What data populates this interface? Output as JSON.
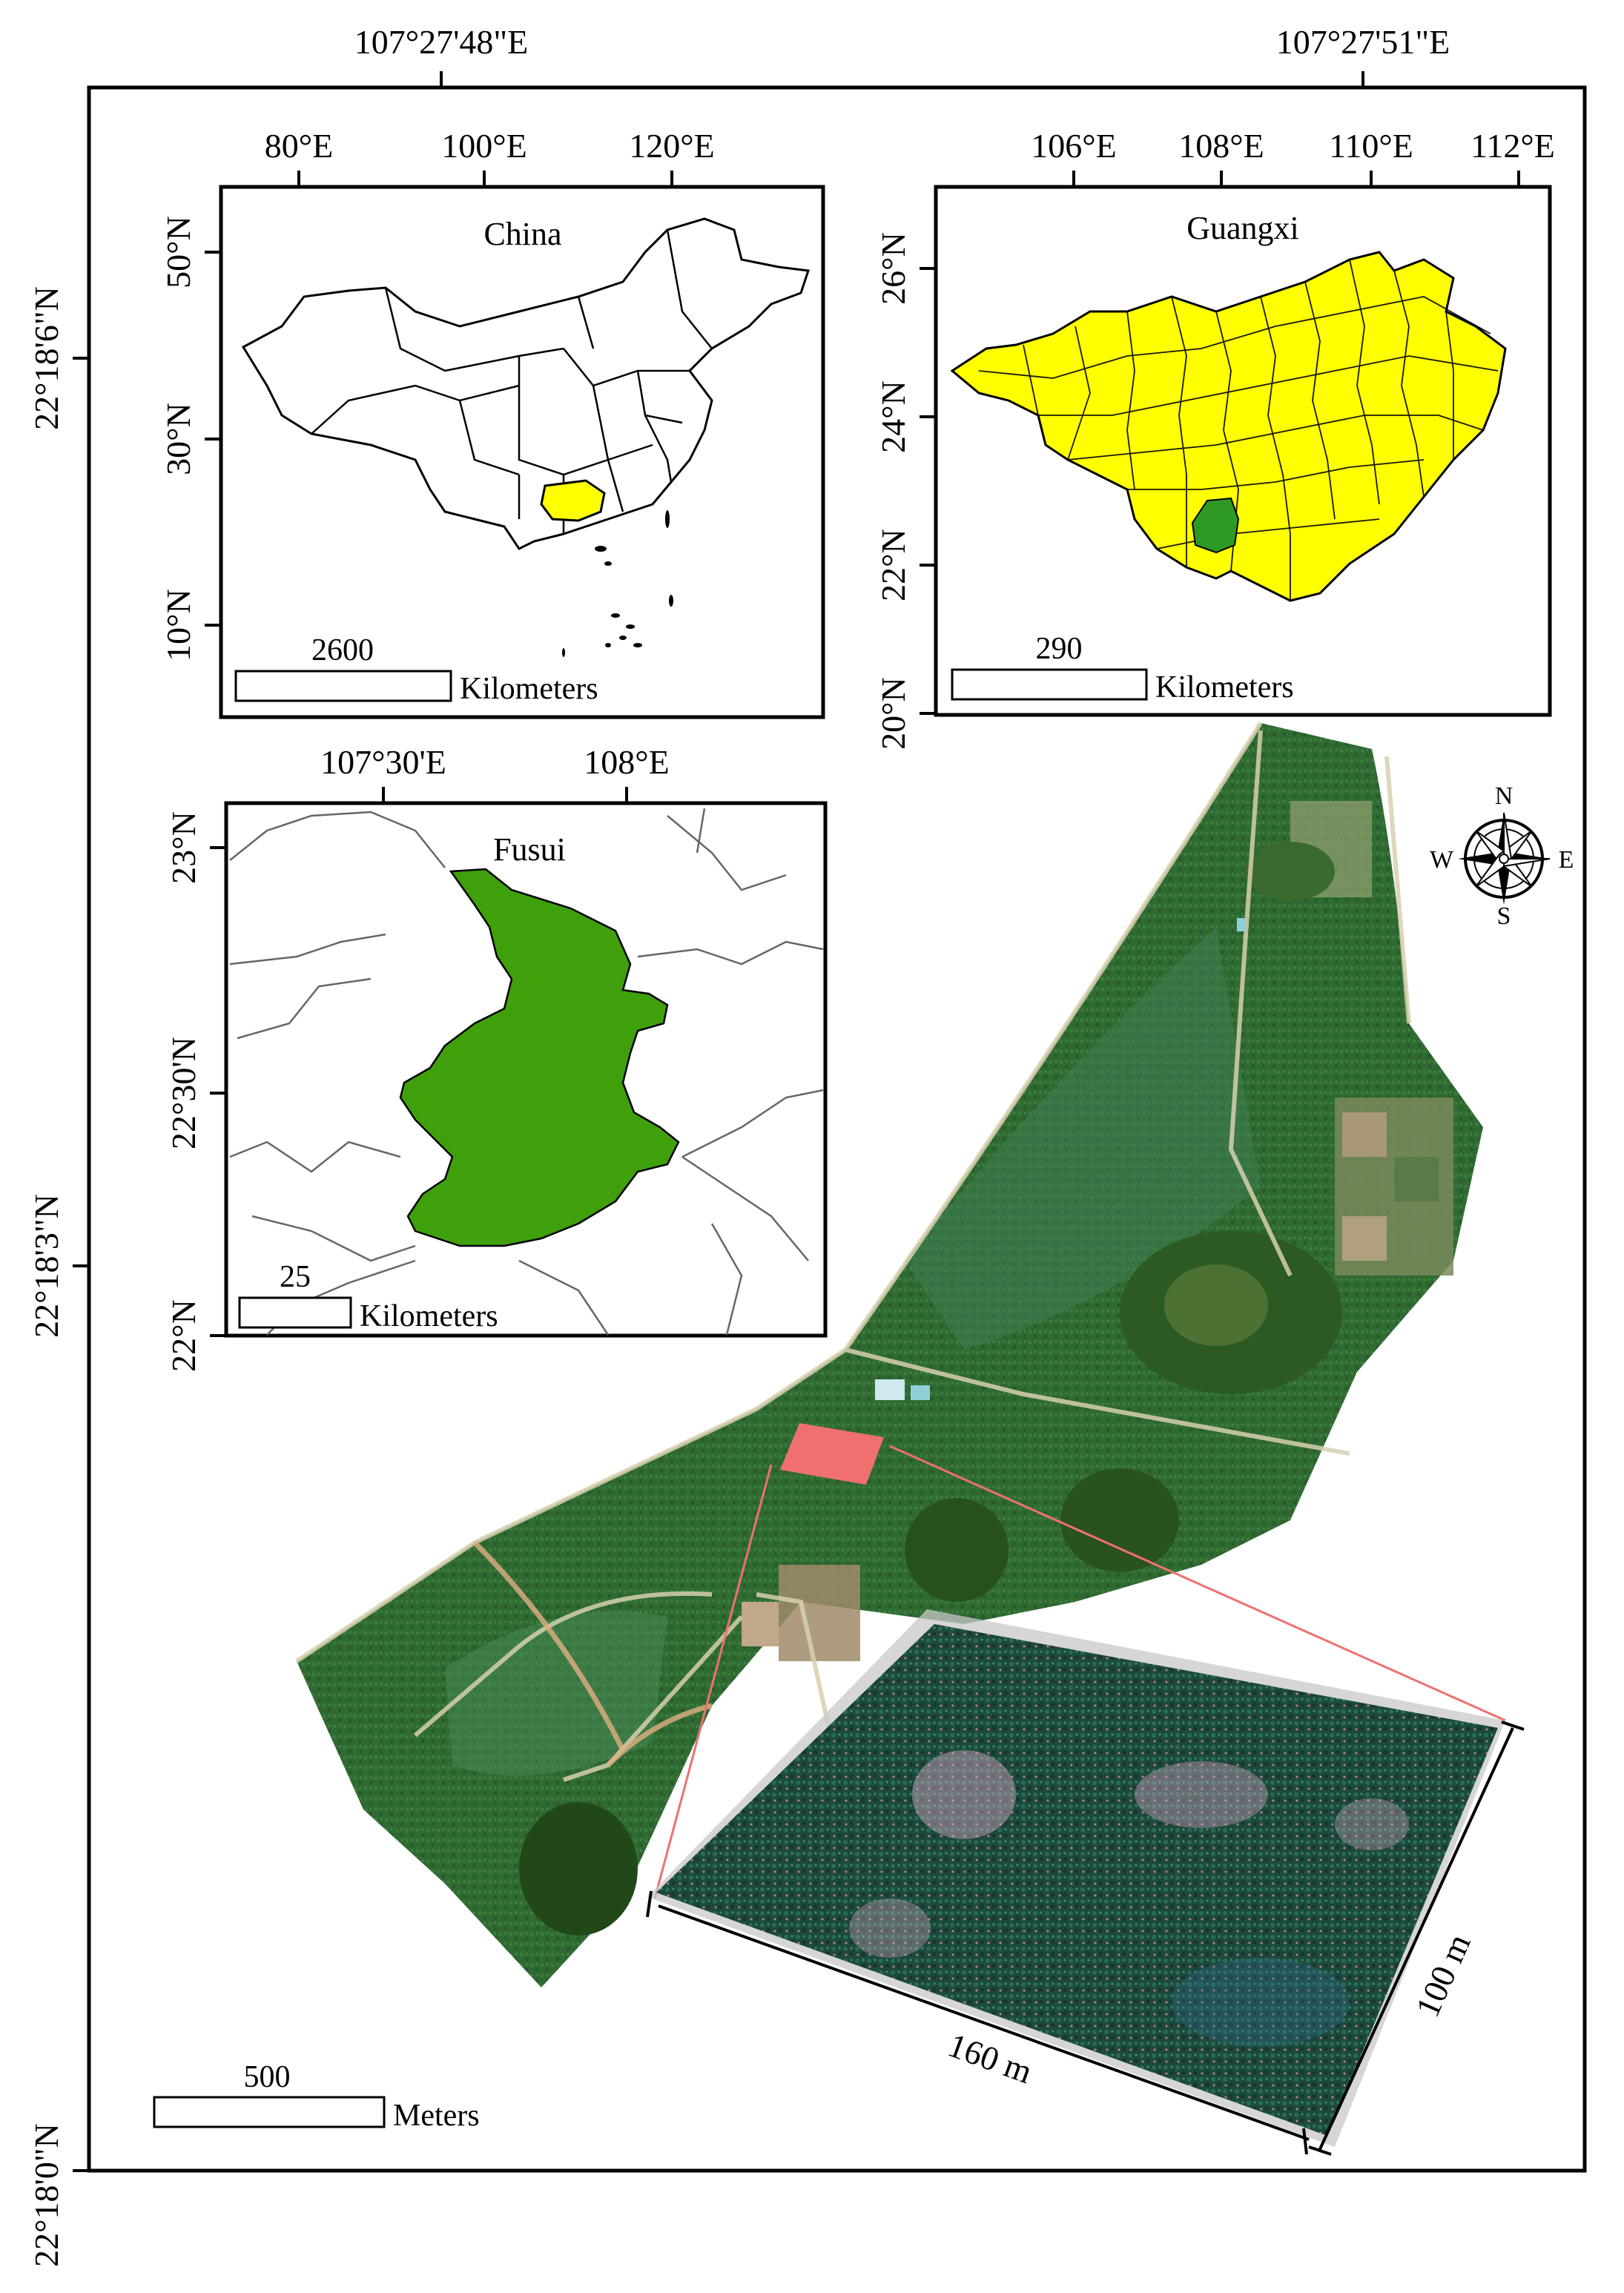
{
  "main_map": {
    "top_labels": [
      "107°27'48\"E",
      "107°27'51\"E"
    ],
    "left_labels": [
      "22°18'6\"N",
      "22°18'3\"N",
      "22°18'0\"N"
    ],
    "scale_value": "500",
    "scale_unit": "Meters",
    "inset_dim_long": "160 m",
    "inset_dim_short": "100 m"
  },
  "north_arrow": {
    "n": "N",
    "e": "E",
    "s": "S",
    "w": "W"
  },
  "inset_china": {
    "title": "China",
    "top_labels": [
      "80°E",
      "100°E",
      "120°E"
    ],
    "left_labels": [
      "50°N",
      "30°N",
      "10°N"
    ],
    "scale_value": "2600",
    "scale_unit": "Kilometers",
    "highlight_color": "#ffff00"
  },
  "inset_guangxi": {
    "title": "Guangxi",
    "top_labels": [
      "106°E",
      "108°E",
      "110°E",
      "112°E"
    ],
    "left_labels": [
      "26°N",
      "24°N",
      "22°N",
      "20°N"
    ],
    "scale_value": "290",
    "scale_unit": "Kilometers",
    "fill_color": "#ffff00",
    "highlight_color": "#2e9a24"
  },
  "inset_fusui": {
    "title": "Fusui",
    "top_labels": [
      "107°30'E",
      "108°E"
    ],
    "left_labels": [
      "23°N",
      "22°30'N",
      "22°N"
    ],
    "scale_value": "25",
    "scale_unit": "Kilometers",
    "fill_color": "#3fa00c"
  },
  "study_plot_color": "#f07070"
}
